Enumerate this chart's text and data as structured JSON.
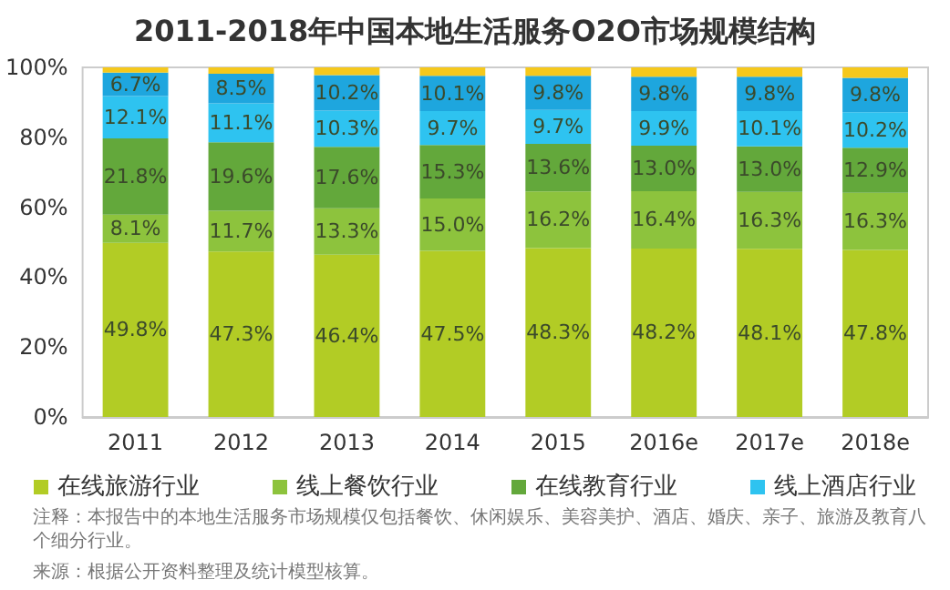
{
  "chart_data": {
    "type": "bar",
    "stacked": true,
    "title": "2011-2018年中国本地生活服务O2O市场规模结构",
    "categories": [
      "2011",
      "2012",
      "2013",
      "2014",
      "2015",
      "2016e",
      "2017e",
      "2018e"
    ],
    "series": [
      {
        "name": "在线旅游行业",
        "color": "#b2cc25",
        "values": [
          49.8,
          47.3,
          46.4,
          47.5,
          48.3,
          48.2,
          48.1,
          47.8
        ],
        "value_labels": [
          "49.8%",
          "47.3%",
          "46.4%",
          "47.5%",
          "48.3%",
          "48.2%",
          "48.1%",
          "47.8%"
        ]
      },
      {
        "name": "线上餐饮行业",
        "color": "#8dc33d",
        "values": [
          8.1,
          11.7,
          13.3,
          15.0,
          16.2,
          16.4,
          16.3,
          16.3
        ],
        "value_labels": [
          "8.1%",
          "11.7%",
          "13.3%",
          "15.0%",
          "16.2%",
          "16.4%",
          "16.3%",
          "16.3%"
        ]
      },
      {
        "name": "在线教育行业",
        "color": "#63a83b",
        "values": [
          21.8,
          19.6,
          17.6,
          15.3,
          13.6,
          13.0,
          13.0,
          12.9
        ],
        "value_labels": [
          "21.8%",
          "19.6%",
          "17.6%",
          "15.3%",
          "13.6%",
          "13.0%",
          "13.0%",
          "12.9%"
        ]
      },
      {
        "name": "线上酒店行业",
        "color": "#2ec3f0",
        "values": [
          12.1,
          11.1,
          10.3,
          9.7,
          9.7,
          9.9,
          10.1,
          10.2
        ],
        "value_labels": [
          "12.1%",
          "11.1%",
          "10.3%",
          "9.7%",
          "9.7%",
          "9.9%",
          "10.1%",
          "10.2%"
        ]
      },
      {
        "color": "#1ea6de",
        "values": [
          6.7,
          8.5,
          10.2,
          10.1,
          9.8,
          9.8,
          9.8,
          9.8
        ],
        "value_labels": [
          "6.7%",
          "8.5%",
          "10.2%",
          "10.1%",
          "9.8%",
          "9.8%",
          "9.8%",
          "9.8%"
        ]
      },
      {
        "color": "#f5c81c",
        "values": [
          1.5,
          1.8,
          2.2,
          2.4,
          2.4,
          2.7,
          2.7,
          3.0
        ]
      }
    ],
    "ylim": [
      0,
      100
    ],
    "yticks": [
      {
        "value": 0,
        "label": "0%"
      },
      {
        "value": 20,
        "label": "20%"
      },
      {
        "value": 40,
        "label": "40%"
      },
      {
        "value": 60,
        "label": "60%"
      },
      {
        "value": 80,
        "label": "80%"
      },
      {
        "value": 100,
        "label": "100%"
      }
    ],
    "grid": false,
    "legend": "bottom",
    "annotations": [
      "注释：本报告中的本地生活服务市场规模仅包括餐饮、休闲娱乐、美容美护、酒店、婚庆、亲子、旅游及教育八个细分行业。",
      "来源：根据公开资料整理及统计模型核算。"
    ]
  }
}
